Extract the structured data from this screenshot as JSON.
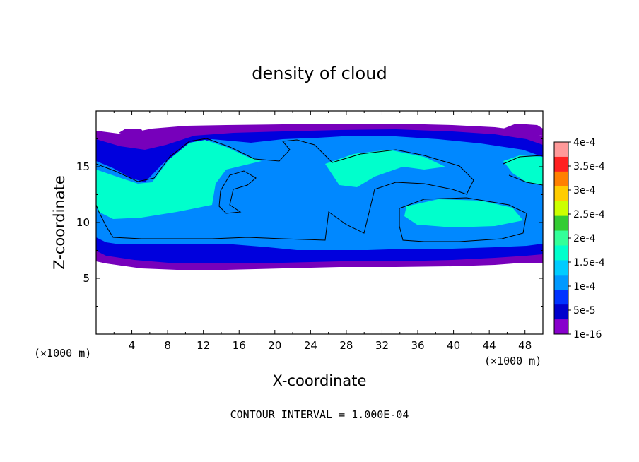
{
  "chart_data": {
    "type": "heatmap",
    "title": "density of cloud",
    "xlabel": "X-coordinate",
    "ylabel": "Z-coordinate",
    "x_unit": "(×1000 m)",
    "y_unit": "(×1000 m)",
    "xlim": [
      0,
      50
    ],
    "ylim": [
      0,
      20
    ],
    "x_ticks": [
      "4",
      "8",
      "12",
      "16",
      "20",
      "24",
      "28",
      "32",
      "36",
      "40",
      "44",
      "48"
    ],
    "y_ticks": [
      "5",
      "10",
      "15"
    ],
    "colorbar": {
      "labels": [
        "4e-4",
        "3.5e-4",
        "3e-4",
        "2.5e-4",
        "2e-4",
        "1.5e-4",
        "1e-4",
        "5e-5",
        "1e-16"
      ],
      "colors": [
        "#ff9999",
        "#ff2020",
        "#ff8000",
        "#ffcc00",
        "#ccff00",
        "#33cc33",
        "#33ff99",
        "#00ffcc",
        "#00ccff",
        "#0099ff",
        "#0033ff",
        "#0000cc",
        "#8800cc"
      ]
    },
    "regions": [
      {
        "name": "outer",
        "value": "1e-16",
        "color": "#7700bb"
      },
      {
        "name": "low",
        "value": "5e-5",
        "color": "#0000dd"
      },
      {
        "name": "mid",
        "value": "1e-4",
        "color": "#0088ff"
      },
      {
        "name": "high",
        "value": "1.5e-4",
        "color": "#00ffcc"
      }
    ],
    "footnote": "CONTOUR INTERVAL = 1.000E-04"
  }
}
